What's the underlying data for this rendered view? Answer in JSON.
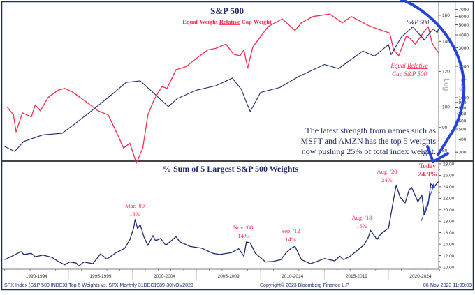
{
  "chart_data": [
    {
      "type": "line",
      "title": "S&P 500",
      "subtitle": {
        "before": "Equal-Weight ",
        "underlined": "Relative",
        "after": " Cap Weight"
      },
      "x_range": [
        1989.92,
        2023.92
      ],
      "right_axis_outer": {
        "scale": "log",
        "range": [
          250,
          8000
        ],
        "ticks": [
          7000,
          6000,
          5000,
          4000,
          3000,
          2000,
          1000,
          900,
          800,
          700,
          600,
          500,
          400,
          300
        ],
        "label": "Log"
      },
      "right_axis_inner": {
        "scale": "log",
        "range": [
          76,
          170
        ],
        "ticks": [
          160,
          140,
          120,
          100,
          90,
          80
        ],
        "label": "Log"
      },
      "series": [
        {
          "name": "S&P 500",
          "color": "#1f2a6b",
          "axis": "outer",
          "points": [
            [
              1990.0,
              340
            ],
            [
              1990.8,
              305
            ],
            [
              1991.5,
              380
            ],
            [
              1993.0,
              440
            ],
            [
              1994.5,
              455
            ],
            [
              1995.5,
              560
            ],
            [
              1997.0,
              780
            ],
            [
              1998.5,
              1100
            ],
            [
              1999.5,
              1400
            ],
            [
              2000.6,
              1450
            ],
            [
              2001.5,
              1150
            ],
            [
              2002.8,
              820
            ],
            [
              2003.5,
              980
            ],
            [
              2005.0,
              1180
            ],
            [
              2006.5,
              1300
            ],
            [
              2007.8,
              1540
            ],
            [
              2008.5,
              1200
            ],
            [
              2008.9,
              900
            ],
            [
              2009.2,
              735
            ],
            [
              2010.0,
              1120
            ],
            [
              2011.5,
              1250
            ],
            [
              2013.0,
              1600
            ],
            [
              2015.0,
              2080
            ],
            [
              2016.1,
              1900
            ],
            [
              2018.0,
              2800
            ],
            [
              2018.9,
              2500
            ],
            [
              2020.0,
              3230
            ],
            [
              2020.2,
              2580
            ],
            [
              2021.0,
              3800
            ],
            [
              2021.9,
              4770
            ],
            [
              2022.8,
              3580
            ],
            [
              2023.5,
              4580
            ],
            [
              2023.8,
              4200
            ],
            [
              2023.9,
              4550
            ]
          ]
        },
        {
          "name": "Equal Relative Cap S&P 500",
          "name_lines": [
            "Equal ",
            "Relative",
            "Cap S&P 500"
          ],
          "color": "#ff2a4a",
          "axis": "inner",
          "points": [
            [
              1990.2,
              100
            ],
            [
              1990.7,
              96
            ],
            [
              1990.9,
              88
            ],
            [
              1991.4,
              97
            ],
            [
              1992.1,
              95
            ],
            [
              1992.4,
              101
            ],
            [
              1992.8,
              98
            ],
            [
              1993.4,
              105
            ],
            [
              1994.2,
              109
            ],
            [
              1994.7,
              110
            ],
            [
              1995.3,
              108
            ],
            [
              1996.1,
              104
            ],
            [
              1996.7,
              101
            ],
            [
              1997.3,
              98
            ],
            [
              1998.1,
              96
            ],
            [
              1998.9,
              86
            ],
            [
              1999.3,
              81
            ],
            [
              1999.8,
              83
            ],
            [
              2000.3,
              75
            ],
            [
              2000.8,
              81
            ],
            [
              2001.2,
              96
            ],
            [
              2001.7,
              104
            ],
            [
              2002.3,
              111
            ],
            [
              2002.7,
              110
            ],
            [
              2003.4,
              121
            ],
            [
              2004.2,
              123
            ],
            [
              2005.1,
              129
            ],
            [
              2005.9,
              134
            ],
            [
              2006.5,
              135
            ],
            [
              2007.3,
              138
            ],
            [
              2007.9,
              131
            ],
            [
              2008.4,
              130
            ],
            [
              2008.7,
              134
            ],
            [
              2009.0,
              122
            ],
            [
              2009.4,
              136
            ],
            [
              2010.6,
              151
            ],
            [
              2011.7,
              157
            ],
            [
              2012.7,
              148
            ],
            [
              2013.2,
              154
            ],
            [
              2014.1,
              159
            ],
            [
              2015.4,
              161
            ],
            [
              2016.4,
              154
            ],
            [
              2017.1,
              159
            ],
            [
              2018.4,
              152
            ],
            [
              2019.2,
              149
            ],
            [
              2020.1,
              146
            ],
            [
              2020.4,
              134
            ],
            [
              2020.8,
              130
            ],
            [
              2021.4,
              144
            ],
            [
              2021.7,
              142
            ],
            [
              2022.1,
              138
            ],
            [
              2022.7,
              146
            ],
            [
              2023.1,
              151
            ],
            [
              2023.4,
              139
            ],
            [
              2023.6,
              136
            ],
            [
              2023.9,
              132
            ]
          ]
        }
      ],
      "annotation": [
        "The latest strength from names such as",
        "MSFT and AMZN has the top 5 weights",
        "now pushing 25% of total index weight."
      ]
    },
    {
      "type": "line",
      "title": "% Sum of 5 Largest S&P 500 Weights",
      "x_range": [
        1989.92,
        2023.92
      ],
      "y_axis": {
        "range": [
          10,
          28
        ],
        "ticks": [
          "28.00",
          "26.00",
          "24.00",
          "22.00",
          "20.00",
          "18.00",
          "16.00",
          "14.00",
          "12.00",
          "10.00"
        ]
      },
      "x_tick_labels": [
        "1990-1994",
        "1995-1999",
        "2000-2004",
        "2005-2009",
        "2010-2014",
        "2015-2019",
        "2020-2024"
      ],
      "series": [
        {
          "color": "#1f2a6b",
          "points": [
            [
              1990.0,
              11.3
            ],
            [
              1990.2,
              11.5
            ],
            [
              1991.3,
              12.7
            ],
            [
              1991.5,
              12.2
            ],
            [
              1992.1,
              12.4
            ],
            [
              1992.4,
              11.8
            ],
            [
              1993.0,
              12.1
            ],
            [
              1993.7,
              11.7
            ],
            [
              1994.2,
              11.0
            ],
            [
              1994.7,
              10.4
            ],
            [
              1995.1,
              10.9
            ],
            [
              1995.6,
              10.7
            ],
            [
              1995.8,
              10.2
            ],
            [
              1996.2,
              10.9
            ],
            [
              1996.9,
              10.6
            ],
            [
              1997.5,
              12.3
            ],
            [
              1998.0,
              11.4
            ],
            [
              1998.7,
              12.5
            ],
            [
              1999.4,
              13.3
            ],
            [
              1999.8,
              14.8
            ],
            [
              2000.1,
              16.9
            ],
            [
              2000.2,
              18.3
            ],
            [
              2000.4,
              16.7
            ],
            [
              2000.6,
              17.4
            ],
            [
              2000.9,
              15.2
            ],
            [
              2001.2,
              13.8
            ],
            [
              2001.6,
              15.5
            ],
            [
              2001.8,
              14.6
            ],
            [
              2002.2,
              15.0
            ],
            [
              2002.6,
              13.8
            ],
            [
              2003.4,
              15.3
            ],
            [
              2003.7,
              14.4
            ],
            [
              2004.5,
              13.6
            ],
            [
              2005.4,
              13.3
            ],
            [
              2006.3,
              12.4
            ],
            [
              2006.8,
              12.2
            ],
            [
              2007.7,
              12.5
            ],
            [
              2008.3,
              13.2
            ],
            [
              2008.7,
              11.9
            ],
            [
              2008.9,
              14.4
            ],
            [
              2009.2,
              14.2
            ],
            [
              2009.6,
              12.4
            ],
            [
              2010.4,
              10.9
            ],
            [
              2011.0,
              11.0
            ],
            [
              2011.6,
              11.3
            ],
            [
              2012.0,
              12.5
            ],
            [
              2012.4,
              13.3
            ],
            [
              2012.7,
              13.6
            ],
            [
              2013.2,
              11.3
            ],
            [
              2013.9,
              10.6
            ],
            [
              2014.4,
              11.0
            ],
            [
              2015.0,
              11.5
            ],
            [
              2015.8,
              11.1
            ],
            [
              2016.2,
              11.9
            ],
            [
              2016.5,
              11.3
            ],
            [
              2017.0,
              11.9
            ],
            [
              2017.5,
              12.8
            ],
            [
              2018.1,
              13.9
            ],
            [
              2018.4,
              15.1
            ],
            [
              2018.6,
              16.4
            ],
            [
              2019.1,
              14.8
            ],
            [
              2019.4,
              15.8
            ],
            [
              2020.0,
              16.8
            ],
            [
              2020.3,
              20.6
            ],
            [
              2020.6,
              24.3
            ],
            [
              2020.9,
              22.2
            ],
            [
              2021.3,
              21.2
            ],
            [
              2021.6,
              23.4
            ],
            [
              2021.8,
              23.9
            ],
            [
              2022.3,
              21.4
            ],
            [
              2022.6,
              22.6
            ],
            [
              2022.8,
              19.1
            ],
            [
              2023.1,
              21.0
            ],
            [
              2023.3,
              24.5
            ],
            [
              2023.6,
              24.1
            ],
            [
              2023.9,
              24.9
            ]
          ]
        }
      ],
      "annotations": [
        {
          "label": "Mar. '00",
          "value": "18%",
          "x": 2000.2,
          "y": 18
        },
        {
          "label": "Nov. '08",
          "value": "14%",
          "x": 2008.9,
          "y": 14
        },
        {
          "label": "Sep. '12",
          "value": "14%",
          "x": 2012.7,
          "y": 14
        },
        {
          "label": "Aug. '18",
          "value": "16%",
          "x": 2018.6,
          "y": 16
        },
        {
          "label": "Aug. '20",
          "value": "24%",
          "x": 2020.6,
          "y": 24
        },
        {
          "label": "Today",
          "value": "24.9%",
          "x": 2023.9,
          "y": 24.9
        }
      ],
      "annotation_color": "#ff2a4a",
      "arrow_color": "#2444d8"
    }
  ],
  "footer": {
    "left": "SPX Index (S&P 500 INDEX) Top 5 Weights vs. SPX  Monthly 31DEC1989-30NOV2023",
    "center": "Copyright© 2023 Bloomberg Finance L.P.",
    "right": "06-Nov-2023 11:09:03"
  },
  "colors": {
    "frame": "#1f2a6b",
    "title": "#1f2a6b",
    "red": "#ff2a4a",
    "arrow": "#2444d8"
  }
}
